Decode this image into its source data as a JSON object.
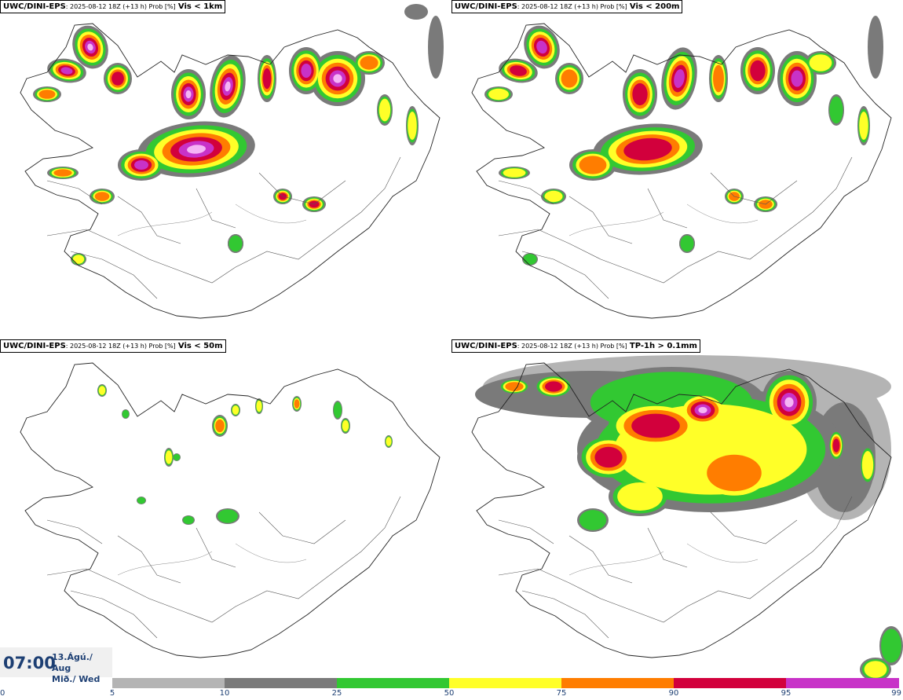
{
  "panels": [
    {
      "id": "p1",
      "model": "UWC/DINI-EPS",
      "run": ": 2025-08-12 18Z (+13 h) Prob [%]",
      "field": "Vis < 1km"
    },
    {
      "id": "p2",
      "model": "UWC/DINI-EPS",
      "run": ": 2025-08-12 18Z (+13 h) Prob [%]",
      "field": "Vis < 200m"
    },
    {
      "id": "p3",
      "model": "UWC/DINI-EPS",
      "run": ": 2025-08-12 18Z (+13 h) Prob [%]",
      "field": "Vis < 50m"
    },
    {
      "id": "p4",
      "model": "UWC/DINI-EPS",
      "run": ": 2025-08-12 18Z (+13 h) Prob [%]",
      "field": "TP-1h > 0.1mm"
    }
  ],
  "time": {
    "clock": "07:00",
    "date_line1": "13.Ágú./ Aug",
    "date_line2": "Mið./ Wed"
  },
  "colorbar": {
    "ticks": [
      "0",
      "5",
      "10",
      "25",
      "50",
      "75",
      "90",
      "95",
      "99"
    ],
    "colors": [
      "#ffffff",
      "#b4b4b4",
      "#7a7a7a",
      "#32c832",
      "#ffff28",
      "#ff7d00",
      "#d2003c",
      "#c832c8",
      "#f5b4f5"
    ]
  },
  "colors": {
    "prob_5_10": "#b4b4b4",
    "prob_10_25": "#7a7a7a",
    "prob_25_50": "#32c832",
    "prob_50_75": "#ffff28",
    "prob_75_90": "#ff7d00",
    "prob_90_95": "#d2003c",
    "prob_95_99": "#c832c8",
    "prob_99": "#f5b4f5",
    "text_accent": "#1d3f73"
  }
}
